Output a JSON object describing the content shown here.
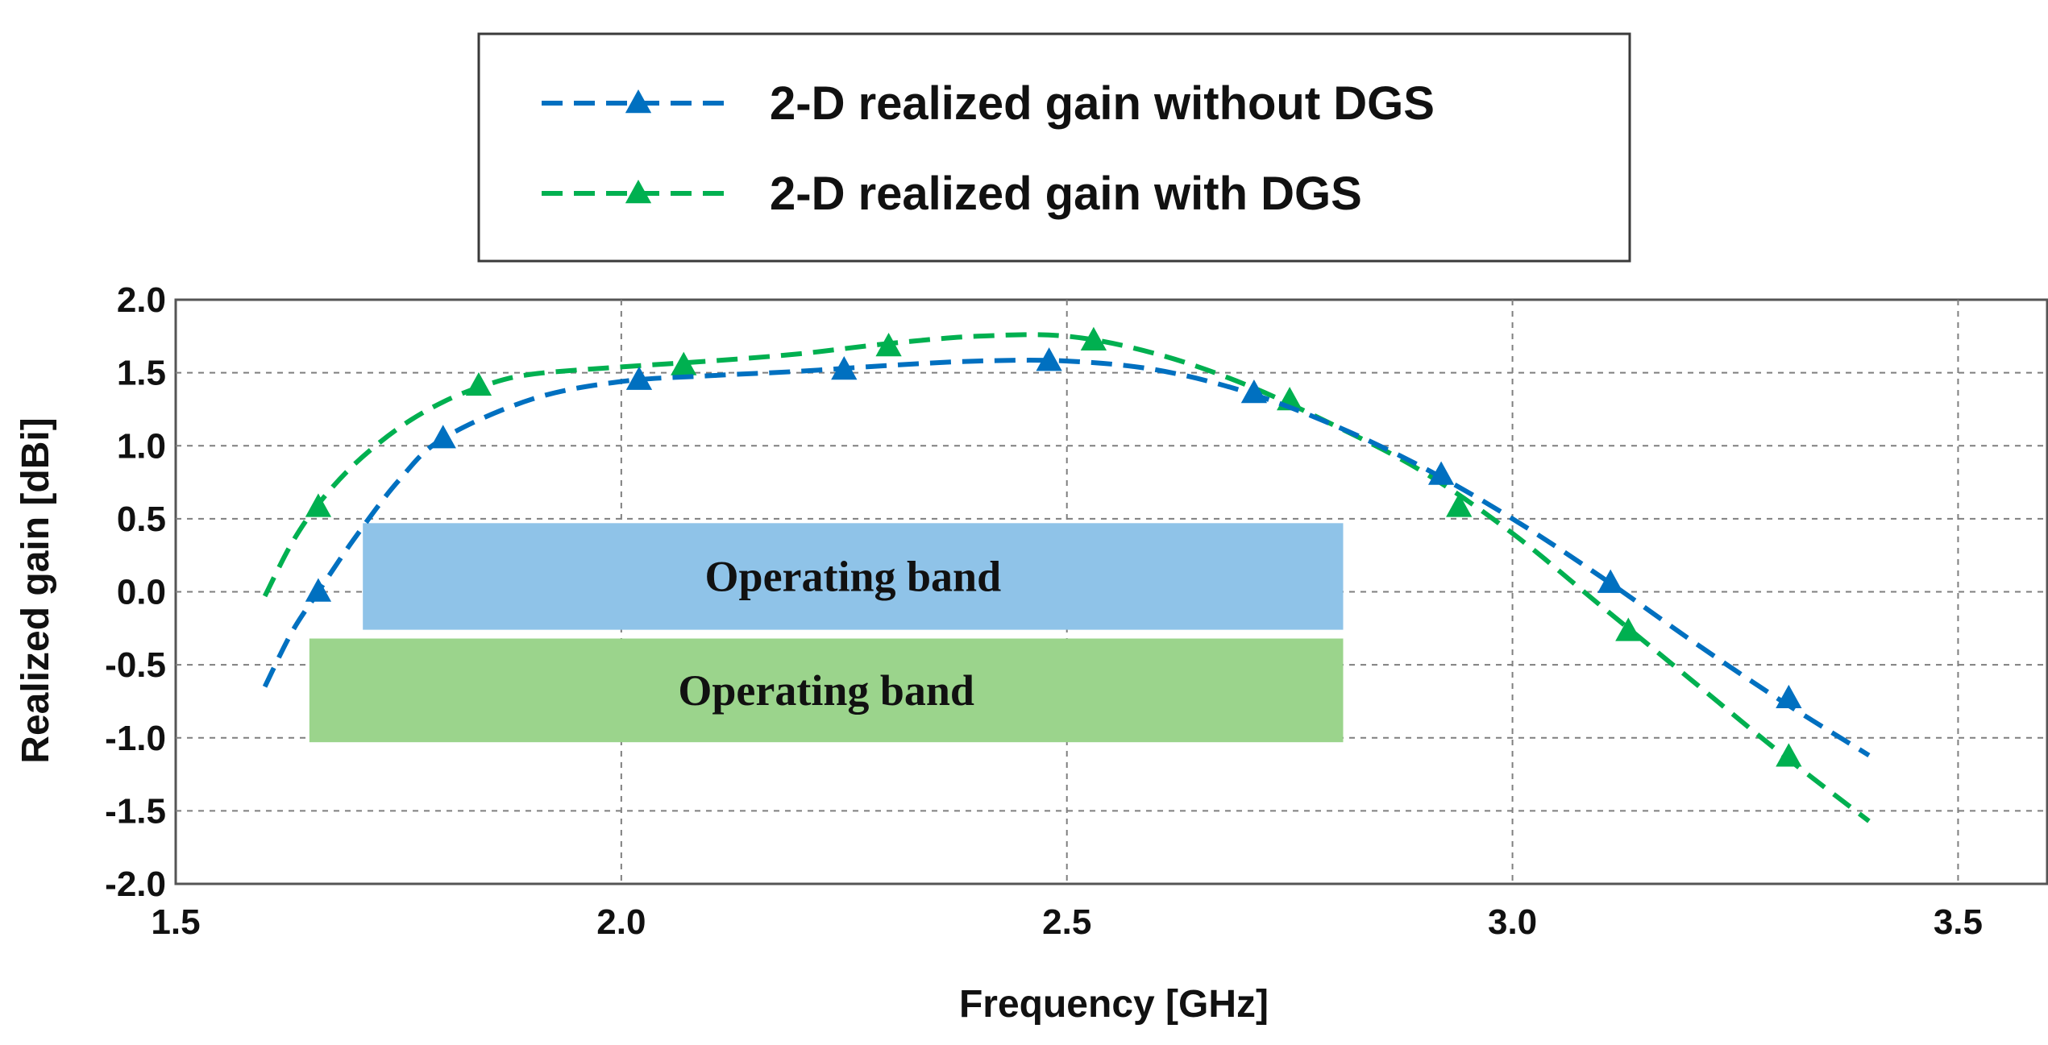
{
  "chart_data": {
    "type": "line",
    "title": "",
    "xlabel": "Frequency [GHz]",
    "ylabel": "Realized gain [dBi]",
    "xlim": [
      1.5,
      3.6
    ],
    "ylim": [
      -2.0,
      2.0
    ],
    "xticks": [
      1.5,
      2.0,
      2.5,
      3.0,
      3.5
    ],
    "xtick_labels": [
      "1.5",
      "2.0",
      "2.5",
      "3.0",
      "3.5"
    ],
    "yticks": [
      2.0,
      1.5,
      1.0,
      0.5,
      0.0,
      -0.5,
      -1.0,
      -1.5,
      -2.0
    ],
    "ytick_labels": [
      "2.0",
      "1.5",
      "1.0",
      "0.5",
      "0.0",
      "-0.5",
      "-1.0",
      "-1.5",
      "-2.0"
    ],
    "grid": true,
    "legend_position": "top-center",
    "series": [
      {
        "name": "2-D realized gain without DGS",
        "color": "#0070c0",
        "marker": "triangle",
        "line_style": "dashed",
        "x": [
          1.6,
          1.63,
          1.66,
          1.7,
          1.75,
          1.8,
          1.9,
          2.0,
          2.1,
          2.2,
          2.3,
          2.4,
          2.5,
          2.6,
          2.7,
          2.8,
          2.9,
          3.0,
          3.1,
          3.2,
          3.3,
          3.4
        ],
        "values": [
          -0.65,
          -0.28,
          0.0,
          0.36,
          0.76,
          1.05,
          1.32,
          1.44,
          1.48,
          1.51,
          1.55,
          1.58,
          1.58,
          1.52,
          1.37,
          1.14,
          0.85,
          0.5,
          0.1,
          -0.33,
          -0.74,
          -1.12
        ],
        "marker_x": [
          1.66,
          1.8,
          2.02,
          2.25,
          2.48,
          2.71,
          2.92,
          3.11,
          3.31
        ],
        "marker_values": [
          0.0,
          1.05,
          1.45,
          1.52,
          1.58,
          1.36,
          0.8,
          0.06,
          -0.73
        ]
      },
      {
        "name": "2-D realized gain with DGS",
        "color": "#00b050",
        "marker": "triangle",
        "line_style": "dashed",
        "x": [
          1.6,
          1.63,
          1.66,
          1.7,
          1.75,
          1.8,
          1.85,
          1.9,
          2.0,
          2.1,
          2.2,
          2.3,
          2.4,
          2.5,
          2.6,
          2.7,
          2.8,
          2.9,
          3.0,
          3.1,
          3.2,
          3.3,
          3.4
        ],
        "values": [
          -0.03,
          0.33,
          0.6,
          0.87,
          1.12,
          1.3,
          1.42,
          1.49,
          1.54,
          1.58,
          1.63,
          1.7,
          1.75,
          1.75,
          1.63,
          1.42,
          1.14,
          0.82,
          0.4,
          -0.1,
          -0.6,
          -1.1,
          -1.57
        ],
        "marker_x": [
          1.66,
          1.84,
          2.07,
          2.3,
          2.53,
          2.75,
          2.94,
          3.13,
          3.31
        ],
        "marker_values": [
          0.58,
          1.41,
          1.55,
          1.68,
          1.72,
          1.31,
          0.58,
          -0.27,
          -1.13
        ]
      }
    ],
    "annotations": [
      {
        "type": "band",
        "label": "Operating band",
        "color": "#8fc3e8",
        "x_range": [
          1.71,
          2.81
        ],
        "y_range": [
          -0.26,
          0.47
        ]
      },
      {
        "type": "band",
        "label": "Operating band",
        "color": "#9bd48c",
        "x_range": [
          1.65,
          2.81
        ],
        "y_range": [
          -1.03,
          -0.32
        ]
      }
    ]
  }
}
